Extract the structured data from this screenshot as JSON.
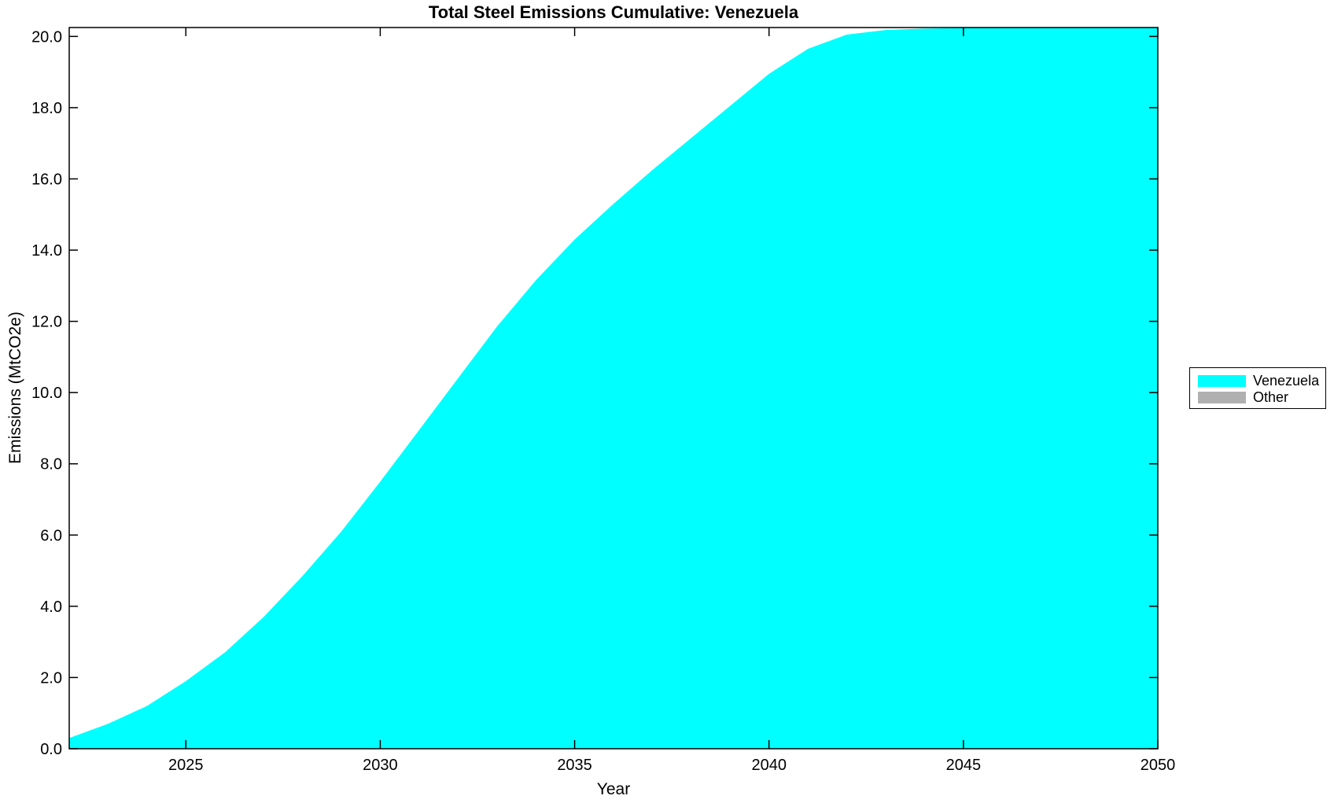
{
  "figure": {
    "title": "Total Steel Emissions Cumulative: Venezuela",
    "xlabel": "Year",
    "ylabel": "Emissions (MtCO2e)"
  },
  "colors": {
    "area": "#00FFFF",
    "other": "#B0B0B0",
    "axis": "#000000",
    "background": "#FFFFFF"
  },
  "legend": {
    "position": "outside-right",
    "items": [
      {
        "label": "Venezuela",
        "color": "#00FFFF"
      },
      {
        "label": "Other",
        "color": "#B0B0B0"
      }
    ]
  },
  "axes": {
    "x_tick_labels": [
      "2025",
      "2030",
      "2035",
      "2040",
      "2045",
      "2050"
    ],
    "x_tick_values": [
      2025,
      2030,
      2035,
      2040,
      2045,
      2050
    ],
    "y_tick_labels": [
      "0.0",
      "2.0",
      "4.0",
      "6.0",
      "8.0",
      "10.0",
      "12.0",
      "14.0",
      "16.0",
      "18.0",
      "20.0"
    ],
    "y_tick_values": [
      0,
      2,
      4,
      6,
      8,
      10,
      12,
      14,
      16,
      18,
      20
    ]
  },
  "chart_data": {
    "type": "area",
    "title": "Total Steel Emissions Cumulative: Venezuela",
    "xlabel": "Year",
    "ylabel": "Emissions (MtCO2e)",
    "xlim": [
      2022,
      2050
    ],
    "ylim": [
      0,
      20.25
    ],
    "grid": false,
    "legend_position": "outside-right",
    "x": [
      2022,
      2023,
      2024,
      2025,
      2026,
      2027,
      2028,
      2029,
      2030,
      2031,
      2032,
      2033,
      2034,
      2035,
      2036,
      2037,
      2038,
      2039,
      2040,
      2041,
      2042,
      2043,
      2044,
      2045,
      2046,
      2047,
      2048,
      2049,
      2050
    ],
    "series": [
      {
        "name": "Venezuela",
        "color": "#00FFFF",
        "values": [
          0.3,
          0.7,
          1.2,
          1.9,
          2.7,
          3.7,
          4.85,
          6.1,
          7.5,
          8.95,
          10.4,
          11.85,
          13.15,
          14.3,
          15.3,
          16.25,
          17.15,
          18.05,
          18.95,
          19.65,
          20.05,
          20.18,
          20.22,
          20.24,
          20.25,
          20.25,
          20.25,
          20.25,
          20.25
        ]
      },
      {
        "name": "Other",
        "color": "#B0B0B0",
        "values": [
          0,
          0,
          0,
          0,
          0,
          0,
          0,
          0,
          0,
          0,
          0,
          0,
          0,
          0,
          0,
          0,
          0,
          0,
          0,
          0,
          0,
          0,
          0,
          0,
          0,
          0,
          0,
          0,
          0
        ]
      }
    ]
  }
}
